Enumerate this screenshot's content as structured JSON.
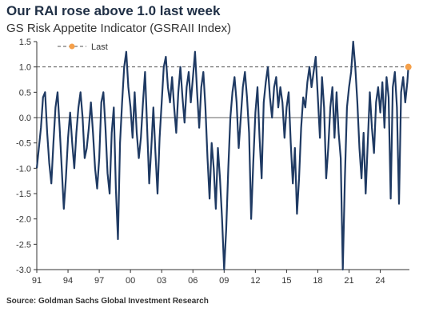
{
  "chart_data": {
    "type": "line",
    "title": "Our RAI rose above 1.0 last week",
    "subtitle": "GS Risk Appetite Indicator (GSRAII Index)",
    "source": "Source: Goldman Sachs Global Investment Research",
    "ylim": [
      -3.0,
      1.5
    ],
    "yticks": [
      "1.5",
      "1.0",
      "0.5",
      "0.0",
      "-0.5",
      "-1.0",
      "-1.5",
      "-2.0",
      "-2.5",
      "-3.0"
    ],
    "xticks": [
      "91",
      "94",
      "97",
      "00",
      "03",
      "06",
      "09",
      "12",
      "15",
      "18",
      "21",
      "24"
    ],
    "xrange": [
      1991.0,
      2026.8
    ],
    "reference_line": {
      "value": 1.0,
      "label": "Last",
      "style": "dashed"
    },
    "colors": {
      "series": "#1f3a63",
      "last_marker": "#f5a04a",
      "reference": "#555555"
    },
    "last_point": {
      "x": 2026.7,
      "y": 1.0
    },
    "series": [
      {
        "x": [
          1991.0,
          1991.2,
          1991.4,
          1991.6,
          1991.8,
          1992.0,
          1992.2,
          1992.4,
          1992.6,
          1992.8,
          1993.0,
          1993.2,
          1993.4,
          1993.6,
          1993.8,
          1994.0,
          1994.2,
          1994.4,
          1994.6,
          1994.8,
          1995.0,
          1995.2,
          1995.4,
          1995.6,
          1995.8,
          1996.0,
          1996.2,
          1996.4,
          1996.6,
          1996.8,
          1997.0,
          1997.2,
          1997.4,
          1997.6,
          1997.8,
          1998.0,
          1998.2,
          1998.4,
          1998.6,
          1998.8,
          1999.0,
          1999.2,
          1999.4,
          1999.6,
          1999.8,
          2000.0,
          2000.2,
          2000.4,
          2000.6,
          2000.8,
          2001.0,
          2001.2,
          2001.4,
          2001.6,
          2001.8,
          2002.0,
          2002.2,
          2002.4,
          2002.6,
          2002.8,
          2003.0,
          2003.2,
          2003.4,
          2003.6,
          2003.8,
          2004.0,
          2004.2,
          2004.4,
          2004.6,
          2004.8,
          2005.0,
          2005.2,
          2005.4,
          2005.6,
          2005.8,
          2006.0,
          2006.2,
          2006.4,
          2006.6,
          2006.8,
          2007.0,
          2007.2,
          2007.4,
          2007.6,
          2007.8,
          2008.0,
          2008.2,
          2008.4,
          2008.6,
          2008.8,
          2009.0,
          2009.2,
          2009.4,
          2009.6,
          2009.8,
          2010.0,
          2010.2,
          2010.4,
          2010.6,
          2010.8,
          2011.0,
          2011.2,
          2011.4,
          2011.6,
          2011.8,
          2012.0,
          2012.2,
          2012.4,
          2012.6,
          2012.8,
          2013.0,
          2013.2,
          2013.4,
          2013.6,
          2013.8,
          2014.0,
          2014.2,
          2014.4,
          2014.6,
          2014.8,
          2015.0,
          2015.2,
          2015.4,
          2015.6,
          2015.8,
          2016.0,
          2016.2,
          2016.4,
          2016.6,
          2016.8,
          2017.0,
          2017.2,
          2017.4,
          2017.6,
          2017.8,
          2018.0,
          2018.2,
          2018.4,
          2018.6,
          2018.8,
          2019.0,
          2019.2,
          2019.4,
          2019.6,
          2019.8,
          2020.0,
          2020.2,
          2020.4,
          2020.6,
          2020.8,
          2021.0,
          2021.2,
          2021.4,
          2021.6,
          2021.8,
          2022.0,
          2022.2,
          2022.4,
          2022.6,
          2022.8,
          2023.0,
          2023.2,
          2023.4,
          2023.6,
          2023.8,
          2024.0,
          2024.2,
          2024.4,
          2024.6,
          2024.8,
          2025.0,
          2025.2,
          2025.4,
          2025.6,
          2025.8,
          2026.0,
          2026.2,
          2026.4,
          2026.6,
          2026.7
        ],
        "values": [
          -1.0,
          -0.6,
          -0.2,
          0.4,
          0.5,
          -0.3,
          -0.9,
          -1.3,
          -0.5,
          0.2,
          0.5,
          -0.2,
          -1.0,
          -1.8,
          -1.2,
          -0.4,
          0.1,
          -0.5,
          -1.0,
          -0.3,
          0.2,
          0.5,
          0.0,
          -0.8,
          -0.6,
          -0.2,
          0.3,
          -0.3,
          -1.0,
          -1.4,
          -0.8,
          0.3,
          0.5,
          -0.2,
          -1.1,
          -1.5,
          -0.3,
          0.2,
          -1.4,
          -2.4,
          -0.5,
          0.3,
          1.0,
          1.3,
          0.6,
          0.2,
          -0.4,
          0.5,
          -0.3,
          -0.8,
          -0.4,
          0.3,
          0.9,
          -0.2,
          -1.3,
          -0.6,
          0.2,
          -0.7,
          -1.5,
          -0.4,
          0.3,
          1.0,
          1.2,
          0.6,
          0.3,
          0.8,
          0.2,
          -0.3,
          0.5,
          1.0,
          0.4,
          -0.1,
          0.6,
          0.9,
          0.3,
          0.8,
          1.3,
          0.5,
          -0.2,
          0.6,
          0.9,
          0.2,
          -0.8,
          -1.6,
          -0.5,
          -1.0,
          -1.8,
          -0.6,
          -1.2,
          -2.0,
          -3.0,
          -2.2,
          -1.0,
          0.0,
          0.5,
          0.8,
          0.3,
          -0.6,
          0.0,
          0.6,
          0.9,
          0.4,
          -0.3,
          -2.0,
          -0.9,
          0.1,
          0.6,
          -0.4,
          -1.2,
          0.3,
          0.7,
          1.0,
          0.4,
          0.0,
          0.6,
          0.8,
          0.2,
          0.6,
          0.3,
          -0.4,
          0.2,
          0.5,
          -0.5,
          -1.3,
          -0.6,
          -1.9,
          -1.2,
          -0.2,
          0.4,
          0.2,
          0.7,
          1.0,
          0.6,
          0.9,
          1.2,
          0.4,
          -0.4,
          0.8,
          0.2,
          -1.2,
          -0.6,
          0.2,
          0.6,
          -0.4,
          0.5,
          -0.3,
          -0.8,
          -3.0,
          -1.2,
          0.2,
          0.6,
          0.9,
          1.5,
          1.0,
          0.3,
          -0.6,
          -1.2,
          -0.3,
          -1.5,
          -0.5,
          0.5,
          -0.2,
          -0.7,
          0.3,
          0.6,
          0.1,
          0.7,
          -0.2,
          0.8,
          0.4,
          -1.6,
          0.6,
          0.9,
          0.2,
          -1.7,
          0.5,
          0.8,
          0.3,
          0.7,
          1.0
        ]
      }
    ]
  }
}
